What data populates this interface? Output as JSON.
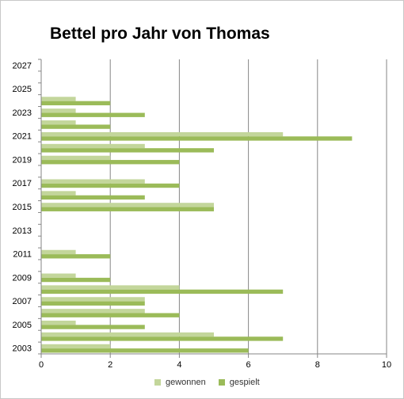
{
  "chart_data": {
    "type": "bar",
    "orientation": "horizontal",
    "title": "Bettel pro Jahr von Thomas",
    "xlabel": "",
    "ylabel": "",
    "xlim": [
      0,
      10
    ],
    "x_ticks": [
      "0",
      "2",
      "4",
      "6",
      "8",
      "10"
    ],
    "categories": [
      "2003",
      "2004",
      "2005",
      "2006",
      "2007",
      "2008",
      "2009",
      "2010",
      "2011",
      "2012",
      "2013",
      "2014",
      "2015",
      "2016",
      "2017",
      "2018",
      "2019",
      "2020",
      "2021",
      "2022",
      "2023",
      "2024",
      "2025",
      "2026",
      "2027"
    ],
    "category_labels": [
      "2003",
      "",
      "2005",
      "",
      "2007",
      "",
      "2009",
      "",
      "2011",
      "",
      "2013",
      "",
      "2015",
      "",
      "2017",
      "",
      "2019",
      "",
      "2021",
      "",
      "2023",
      "",
      "2025",
      "",
      "2027"
    ],
    "series": [
      {
        "name": "gewonnen",
        "color": "#c3d69b",
        "values": [
          2,
          5,
          1,
          3,
          3,
          4,
          1,
          0,
          1,
          0,
          0,
          0,
          5,
          1,
          3,
          0,
          2,
          3,
          7,
          1,
          1,
          1,
          0,
          0,
          0
        ]
      },
      {
        "name": "gespielt",
        "color": "#9bbb59",
        "values": [
          6,
          7,
          3,
          4,
          3,
          7,
          2,
          0,
          2,
          0,
          0,
          0,
          5,
          3,
          4,
          0,
          4,
          5,
          9,
          2,
          3,
          2,
          0,
          0,
          0
        ]
      }
    ],
    "gridlines": "vertical major",
    "legend_position": "bottom"
  }
}
